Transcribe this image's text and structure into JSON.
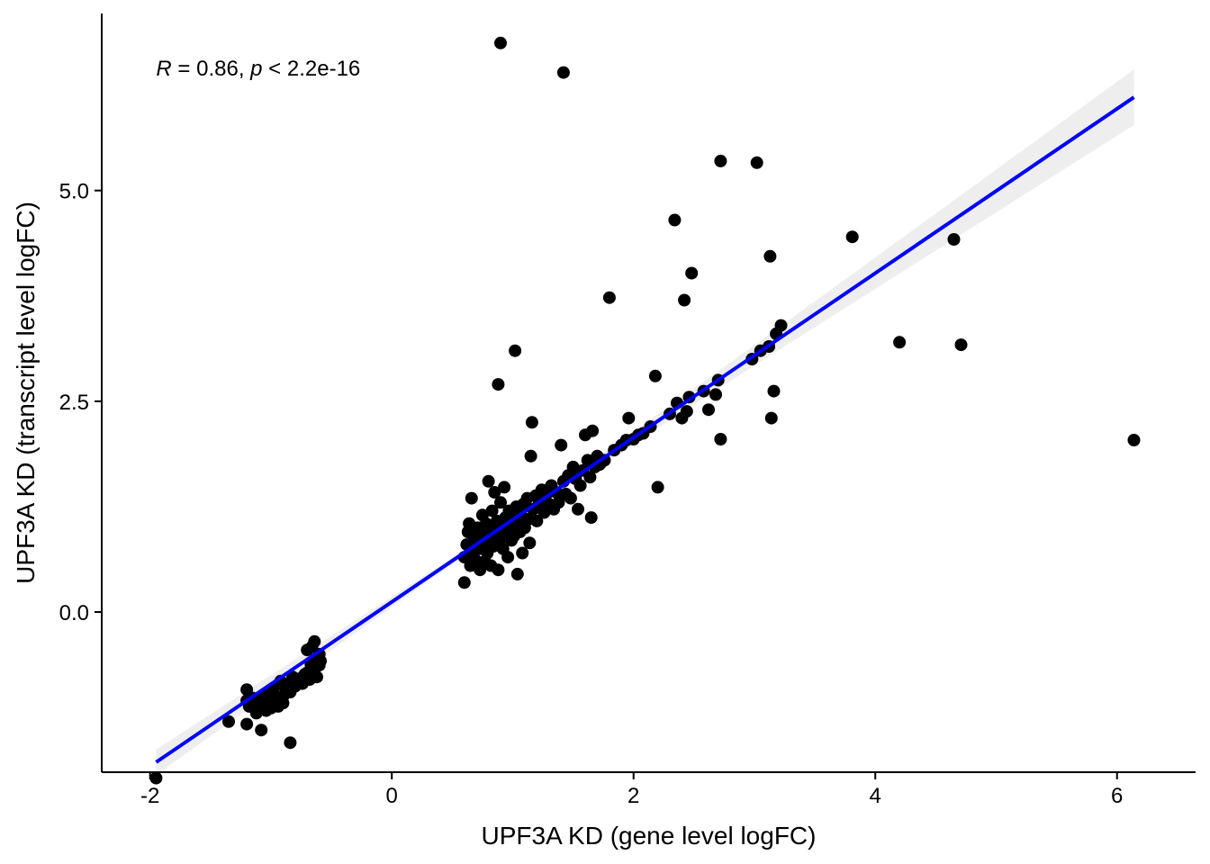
{
  "chart_data": {
    "type": "scatter",
    "title": "",
    "xlabel": "UPF3A KD (gene level logFC)",
    "ylabel": "UPF3A KD (transcript level logFC)",
    "xlim": [
      -2.4,
      6.65
    ],
    "ylim": [
      -1.9,
      7.1
    ],
    "x_ticks": [
      -2,
      0,
      2,
      4,
      6
    ],
    "x_tick_labels": [
      "-2",
      "0",
      "2",
      "4",
      "6"
    ],
    "y_ticks": [
      0,
      2.5,
      5
    ],
    "y_tick_labels": [
      "0.0",
      "2.5",
      "5.0"
    ],
    "grid": false,
    "legend": "none",
    "annotation": {
      "r_symbol": "R",
      "r_text": " = 0.86, ",
      "p_symbol": "p",
      "p_text": " < 2.2e-16",
      "x": -1.95,
      "y": 6.45
    },
    "colors": {
      "points": "#000000",
      "fit_line": "#0000ff",
      "confidence_band": "#ebebeb"
    },
    "fit": {
      "x_range": [
        -1.95,
        6.14
      ],
      "slope": 0.975,
      "intercept": 0.12,
      "ci": [
        [
          -1.95,
          0.15
        ],
        [
          0.0,
          0.06
        ],
        [
          0.5,
          0.04
        ],
        [
          1.5,
          0.05
        ],
        [
          3.0,
          0.12
        ],
        [
          4.5,
          0.22
        ],
        [
          6.14,
          0.33
        ]
      ]
    },
    "series": [
      {
        "values": [
          [
            -1.95,
            -1.97
          ],
          [
            -1.35,
            -1.3
          ],
          [
            -1.2,
            -0.92
          ],
          [
            -1.2,
            -1.05
          ],
          [
            -1.2,
            -1.33
          ],
          [
            -1.18,
            -1.12
          ],
          [
            -1.15,
            -1.02
          ],
          [
            -1.12,
            -1.2
          ],
          [
            -1.1,
            -1.1
          ],
          [
            -1.08,
            -1.4
          ],
          [
            -1.06,
            -0.98
          ],
          [
            -1.04,
            -1.17
          ],
          [
            -1.02,
            -1.05
          ],
          [
            -1.0,
            -1.14
          ],
          [
            -0.98,
            -0.92
          ],
          [
            -0.96,
            -1.03
          ],
          [
            -0.94,
            -1.12
          ],
          [
            -0.92,
            -0.82
          ],
          [
            -0.9,
            -1.0
          ],
          [
            -0.9,
            -1.08
          ],
          [
            -0.88,
            -0.9
          ],
          [
            -0.86,
            -0.85
          ],
          [
            -0.84,
            -0.95
          ],
          [
            -0.84,
            -1.55
          ],
          [
            -0.82,
            -0.77
          ],
          [
            -0.8,
            -0.88
          ],
          [
            -0.78,
            -0.82
          ],
          [
            -0.76,
            -0.79
          ],
          [
            -0.74,
            -0.85
          ],
          [
            -0.72,
            -0.74
          ],
          [
            -0.7,
            -0.72
          ],
          [
            -0.7,
            -0.45
          ],
          [
            -0.68,
            -0.8
          ],
          [
            -0.67,
            -0.62
          ],
          [
            -0.66,
            -0.41
          ],
          [
            -0.64,
            -0.68
          ],
          [
            -0.64,
            -0.35
          ],
          [
            -0.62,
            -0.55
          ],
          [
            -0.62,
            -0.77
          ],
          [
            -0.6,
            -0.63
          ],
          [
            -0.6,
            -0.5
          ],
          [
            -0.59,
            -0.58
          ],
          [
            0.6,
            0.35
          ],
          [
            0.6,
            0.65
          ],
          [
            0.62,
            0.8
          ],
          [
            0.63,
            0.95
          ],
          [
            0.64,
            1.05
          ],
          [
            0.65,
            0.55
          ],
          [
            0.66,
            1.35
          ],
          [
            0.67,
            0.72
          ],
          [
            0.68,
            0.85
          ],
          [
            0.69,
            0.62
          ],
          [
            0.7,
            0.9
          ],
          [
            0.71,
            1.0
          ],
          [
            0.72,
            0.75
          ],
          [
            0.73,
            0.5
          ],
          [
            0.74,
            0.92
          ],
          [
            0.75,
            1.15
          ],
          [
            0.76,
            0.82
          ],
          [
            0.77,
            0.6
          ],
          [
            0.78,
            1.05
          ],
          [
            0.79,
            0.7
          ],
          [
            0.8,
            1.55
          ],
          [
            0.8,
            0.88
          ],
          [
            0.81,
            0.98
          ],
          [
            0.82,
            0.55
          ],
          [
            0.83,
            1.2
          ],
          [
            0.84,
            0.78
          ],
          [
            0.85,
            1.42
          ],
          [
            0.86,
            0.93
          ],
          [
            0.87,
            1.08
          ],
          [
            0.88,
            0.5
          ],
          [
            0.88,
            2.7
          ],
          [
            0.89,
            0.85
          ],
          [
            0.9,
            1.3
          ],
          [
            0.91,
            1.0
          ],
          [
            0.92,
            0.75
          ],
          [
            0.93,
            1.48
          ],
          [
            0.94,
            1.12
          ],
          [
            0.95,
            0.95
          ],
          [
            0.96,
            0.65
          ],
          [
            0.97,
            1.2
          ],
          [
            0.98,
            1.0
          ],
          [
            0.99,
            0.85
          ],
          [
            1.0,
            1.1
          ],
          [
            1.01,
            0.9
          ],
          [
            1.02,
            3.1
          ],
          [
            1.03,
            1.25
          ],
          [
            1.04,
            0.45
          ],
          [
            1.05,
            1.05
          ],
          [
            1.06,
            0.95
          ],
          [
            1.07,
            1.15
          ],
          [
            1.08,
            0.7
          ],
          [
            1.09,
            1.28
          ],
          [
            1.1,
            1.0
          ],
          [
            1.12,
            1.35
          ],
          [
            1.13,
            1.1
          ],
          [
            1.14,
            0.82
          ],
          [
            1.15,
            1.85
          ],
          [
            1.16,
            2.25
          ],
          [
            1.17,
            1.22
          ],
          [
            1.19,
            1.38
          ],
          [
            1.2,
            1.08
          ],
          [
            1.22,
            1.3
          ],
          [
            1.24,
            1.45
          ],
          [
            1.26,
            1.18
          ],
          [
            1.28,
            1.4
          ],
          [
            1.3,
            1.28
          ],
          [
            1.32,
            1.5
          ],
          [
            1.34,
            1.22
          ],
          [
            1.36,
            1.42
          ],
          [
            1.38,
            1.3
          ],
          [
            1.4,
            1.98
          ],
          [
            1.42,
            1.55
          ],
          [
            1.44,
            1.4
          ],
          [
            1.46,
            1.62
          ],
          [
            1.48,
            1.35
          ],
          [
            1.5,
            1.72
          ],
          [
            1.52,
            1.58
          ],
          [
            1.54,
            1.22
          ],
          [
            1.56,
            1.5
          ],
          [
            1.58,
            1.68
          ],
          [
            1.6,
            2.1
          ],
          [
            1.62,
            1.8
          ],
          [
            1.64,
            1.6
          ],
          [
            1.65,
            1.12
          ],
          [
            1.66,
            2.15
          ],
          [
            1.68,
            1.72
          ],
          [
            1.7,
            1.85
          ],
          [
            1.72,
            1.75
          ],
          [
            1.76,
            1.8
          ],
          [
            1.8,
            3.73
          ],
          [
            1.84,
            1.92
          ],
          [
            1.9,
            1.98
          ],
          [
            1.94,
            2.04
          ],
          [
            1.96,
            2.3
          ],
          [
            2.0,
            2.05
          ],
          [
            2.04,
            2.1
          ],
          [
            2.08,
            2.12
          ],
          [
            2.14,
            2.2
          ],
          [
            2.18,
            2.8
          ],
          [
            2.2,
            1.48
          ],
          [
            2.3,
            2.35
          ],
          [
            2.34,
            4.65
          ],
          [
            2.36,
            2.48
          ],
          [
            2.4,
            2.3
          ],
          [
            2.42,
            3.7
          ],
          [
            2.44,
            2.38
          ],
          [
            2.46,
            2.55
          ],
          [
            2.48,
            4.02
          ],
          [
            2.58,
            2.62
          ],
          [
            2.62,
            2.4
          ],
          [
            2.68,
            2.58
          ],
          [
            2.7,
            2.75
          ],
          [
            2.72,
            2.05
          ],
          [
            2.98,
            3.0
          ],
          [
            3.05,
            3.1
          ],
          [
            3.12,
            3.15
          ],
          [
            3.14,
            2.3
          ],
          [
            3.16,
            2.62
          ],
          [
            3.18,
            3.3
          ],
          [
            3.22,
            3.4
          ],
          [
            0.9,
            6.75
          ],
          [
            1.42,
            6.4
          ],
          [
            2.72,
            5.35
          ],
          [
            3.02,
            5.33
          ],
          [
            3.13,
            4.22
          ],
          [
            3.81,
            4.45
          ],
          [
            4.2,
            3.2
          ],
          [
            4.65,
            4.42
          ],
          [
            4.71,
            3.17
          ],
          [
            6.14,
            2.04
          ]
        ]
      }
    ]
  }
}
